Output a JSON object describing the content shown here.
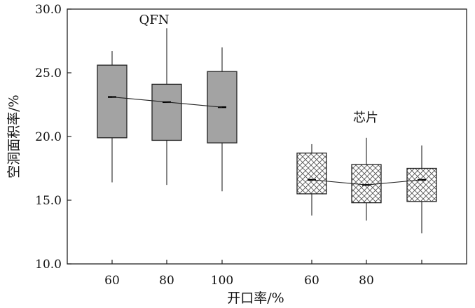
{
  "chart_data": {
    "type": "box",
    "xlabel": "开口率/%",
    "ylabel": "空洞面积率/%",
    "ylim": [
      10.0,
      30.0
    ],
    "yticks": [
      "10.0",
      "15.0",
      "20.0",
      "25.0",
      "30.0"
    ],
    "grid": false,
    "groups": [
      {
        "label": "QFN",
        "fill": "#a3a3a3",
        "pattern": "solid",
        "boxes": [
          {
            "x": "60",
            "whisker_low": 16.4,
            "q1": 19.9,
            "median": 23.1,
            "q3": 25.6,
            "whisker_high": 26.7
          },
          {
            "x": "80",
            "whisker_low": 16.2,
            "q1": 19.7,
            "median": 22.7,
            "q3": 24.1,
            "whisker_high": 28.5
          },
          {
            "x": "100",
            "whisker_low": 15.7,
            "q1": 19.5,
            "median": 22.3,
            "q3": 25.1,
            "whisker_high": 27.0
          }
        ]
      },
      {
        "label": "芯片",
        "fill": "#ffffff",
        "pattern": "crosshatch",
        "boxes": [
          {
            "x": "60",
            "whisker_low": 13.8,
            "q1": 15.5,
            "median": 16.6,
            "q3": 18.7,
            "whisker_high": 19.4
          },
          {
            "x": "80",
            "whisker_low": 13.4,
            "q1": 14.8,
            "median": 16.2,
            "q3": 17.8,
            "whisker_high": 19.9
          },
          {
            "x": "",
            "whisker_low": 12.4,
            "q1": 14.9,
            "median": 16.6,
            "q3": 17.5,
            "whisker_high": 19.3
          }
        ]
      }
    ]
  }
}
